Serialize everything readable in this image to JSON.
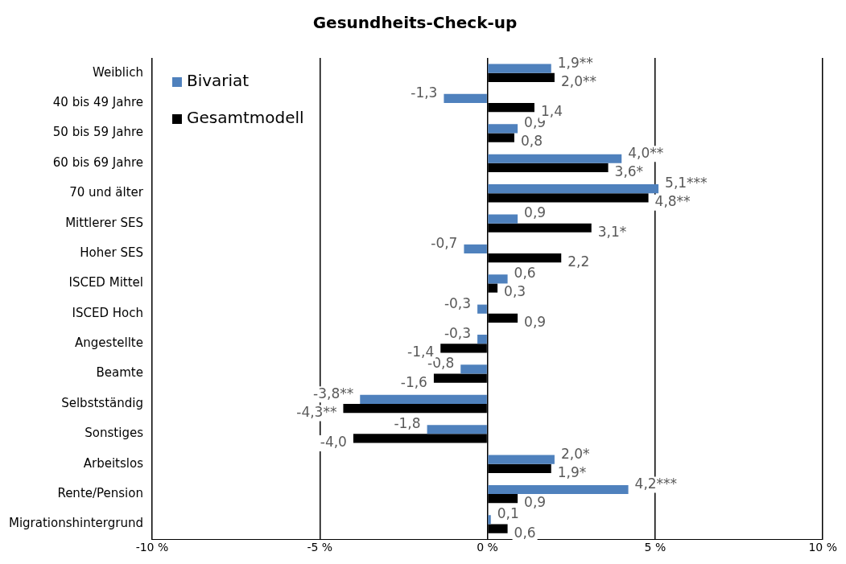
{
  "chart_data": {
    "type": "bar",
    "orientation": "horizontal",
    "title": "Gesundheits-Check-up",
    "categories": [
      "Weiblich",
      "40 bis 49 Jahre",
      "50 bis 59 Jahre",
      "60 bis 69 Jahre",
      "70 und älter",
      "Mittlerer SES",
      "Hoher SES",
      "ISCED Mittel",
      "ISCED Hoch",
      "Angestellte",
      "Beamte",
      "Selbstständig",
      "Sonstiges",
      "Arbeitslos",
      "Rente/Pension",
      "Migrationshintergrund"
    ],
    "series": [
      {
        "name": "Bivariat",
        "color": "#4f81bd",
        "values": [
          1.9,
          -1.3,
          0.9,
          4.0,
          5.1,
          0.9,
          -0.7,
          0.6,
          -0.3,
          -0.3,
          -0.8,
          -3.8,
          -1.8,
          2.0,
          4.2,
          0.1
        ],
        "value_labels": [
          "1,9**",
          "-1,3",
          "0,9",
          "4,0**",
          "5,1***",
          "0,9",
          "-0,7",
          "0,6",
          "-0,3",
          "-0,3",
          "-0,8",
          "-3,8**",
          "-1,8",
          "2,0*",
          "4,2***",
          "0,1"
        ]
      },
      {
        "name": "Gesamtmodell",
        "color": "#000000",
        "values": [
          2.0,
          1.4,
          0.8,
          3.6,
          4.8,
          3.1,
          2.2,
          0.3,
          0.9,
          -1.4,
          -1.6,
          -4.3,
          -4.0,
          1.9,
          0.9,
          0.6
        ],
        "value_labels": [
          "2,0**",
          "1,4",
          "0,8",
          "3,6*",
          "4,8**",
          "3,1*",
          "2,2",
          "0,3",
          "0,9",
          "-1,4",
          "-1,6",
          "-4,3**",
          "-4,0",
          "1,9*",
          "0,9",
          "0,6"
        ]
      }
    ],
    "xlim": [
      -10,
      10
    ],
    "xticks": [
      {
        "value": -10,
        "label": "-10 %"
      },
      {
        "value": -5,
        "label": "-5 %"
      },
      {
        "value": 0,
        "label": "0 %"
      },
      {
        "value": 5,
        "label": "5 %"
      },
      {
        "value": 10,
        "label": "10 %"
      }
    ],
    "grid": "x",
    "legend": "top left"
  }
}
